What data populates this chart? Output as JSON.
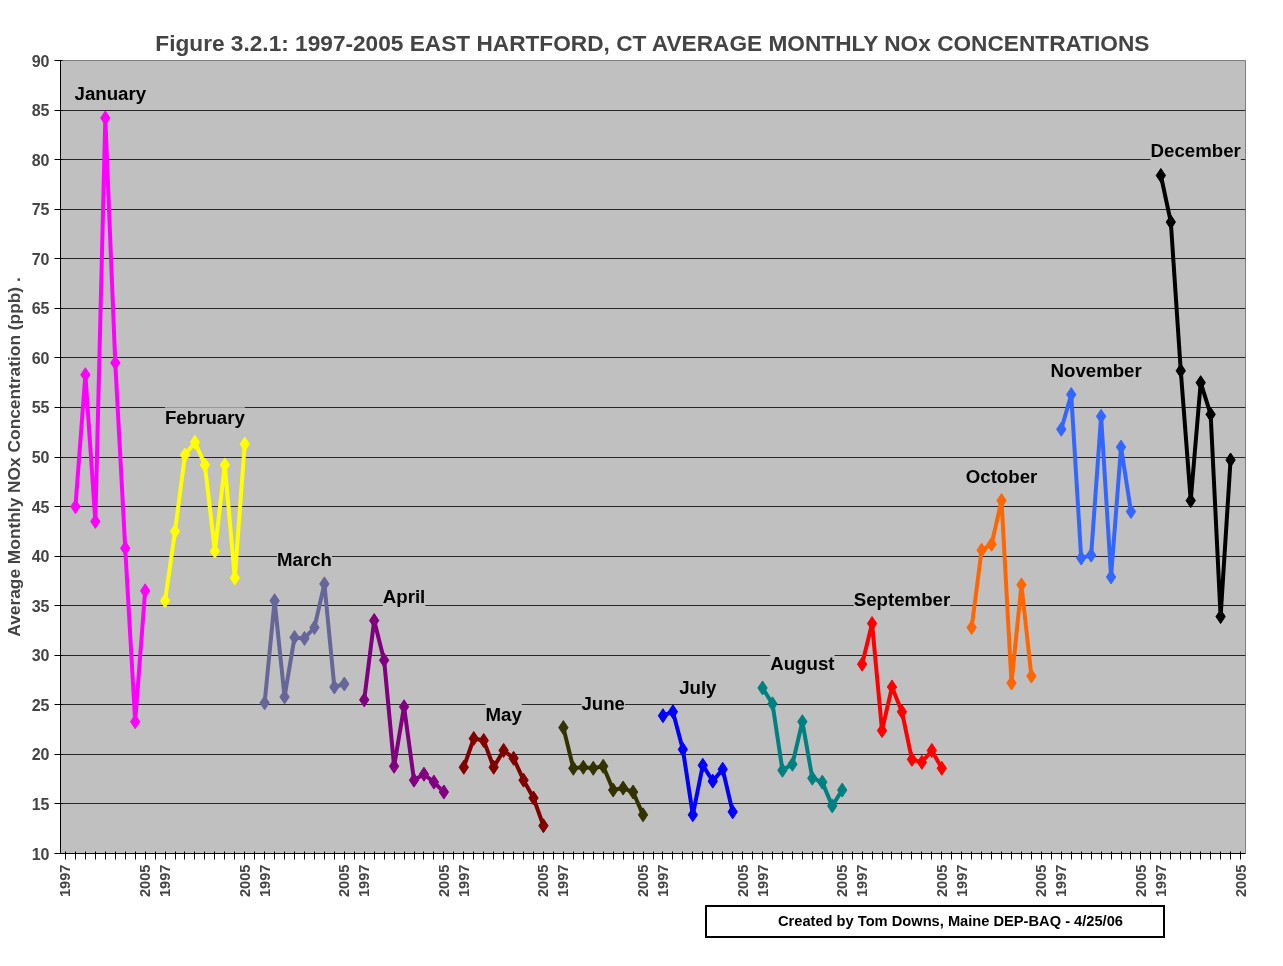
{
  "chart_data": {
    "type": "line",
    "title": "Figure 3.2.1: 1997-2005 EAST HARTFORD, CT AVERAGE MONTHLY NOx CONCENTRATIONS",
    "ylabel": "Average Monthly NOx Concentration (ppb) .",
    "annotations": [
      "Created by Tom Downs, Maine DEP-BAQ - 4/25/06"
    ],
    "categories": [
      "1997",
      null,
      null,
      null,
      null,
      null,
      null,
      null,
      "2005",
      null,
      "1997",
      null,
      null,
      null,
      null,
      null,
      null,
      null,
      "2005",
      null,
      "1997",
      null,
      null,
      null,
      null,
      null,
      null,
      null,
      "2005",
      null,
      "1997",
      null,
      null,
      null,
      null,
      null,
      null,
      null,
      "2005",
      null,
      "1997",
      null,
      null,
      null,
      null,
      null,
      null,
      null,
      "2005",
      null,
      "1997",
      null,
      null,
      null,
      null,
      null,
      null,
      null,
      "2005",
      null,
      "1997",
      null,
      null,
      null,
      null,
      null,
      null,
      null,
      "2005",
      null,
      "1997",
      null,
      null,
      null,
      null,
      null,
      null,
      null,
      "2005",
      null,
      "1997",
      null,
      null,
      null,
      null,
      null,
      null,
      null,
      "2005",
      null,
      "1997",
      null,
      null,
      null,
      null,
      null,
      null,
      null,
      "2005",
      null,
      "1997",
      null,
      null,
      null,
      null,
      null,
      null,
      null,
      "2005",
      null,
      "1997",
      null,
      null,
      null,
      null,
      null,
      null,
      null,
      "2005"
    ],
    "ylim": [
      10,
      90
    ],
    "yticks": [
      10,
      15,
      20,
      25,
      30,
      35,
      40,
      45,
      50,
      55,
      60,
      65,
      70,
      75,
      80,
      85,
      90
    ],
    "grid": "y",
    "marker": "diamond",
    "line_style": "solid",
    "series": [
      {
        "name": "January",
        "color": "#ff00ff",
        "values": [
          null,
          45,
          58.3,
          43.5,
          84.2,
          59.5,
          40.8,
          23.3,
          36.5,
          null,
          null,
          null,
          null,
          null,
          null,
          null,
          null,
          null,
          null,
          null,
          null,
          null,
          null,
          null,
          null,
          null,
          null,
          null,
          null,
          null,
          null,
          null,
          null,
          null,
          null,
          null,
          null,
          null,
          null,
          null,
          null,
          null,
          null,
          null,
          null,
          null,
          null,
          null,
          null,
          null,
          null,
          null,
          null,
          null,
          null,
          null,
          null,
          null,
          null,
          null,
          null,
          null,
          null,
          null,
          null,
          null,
          null,
          null,
          null,
          null,
          null,
          null,
          null,
          null,
          null,
          null,
          null,
          null,
          null,
          null,
          null,
          null,
          null,
          null,
          null,
          null,
          null,
          null,
          null,
          null,
          null,
          null,
          null,
          null,
          null,
          null,
          null,
          null,
          null,
          null,
          null,
          null,
          null,
          null,
          null,
          null,
          null,
          null,
          null,
          null,
          null,
          null,
          null,
          null,
          null,
          null,
          null,
          null,
          null
        ]
      },
      {
        "name": "February",
        "color": "#ffff00",
        "values": [
          null,
          null,
          null,
          null,
          null,
          null,
          null,
          null,
          null,
          null,
          35.5,
          42.5,
          50.2,
          51.5,
          49.2,
          40.5,
          49.2,
          37.8,
          51.3,
          null,
          null,
          null,
          null,
          null,
          null,
          null,
          null,
          null,
          null,
          null,
          null,
          null,
          null,
          null,
          null,
          null,
          null,
          null,
          null,
          null,
          null,
          null,
          null,
          null,
          null,
          null,
          null,
          null,
          null,
          null,
          null,
          null,
          null,
          null,
          null,
          null,
          null,
          null,
          null,
          null,
          null,
          null,
          null,
          null,
          null,
          null,
          null,
          null,
          null,
          null,
          null,
          null,
          null,
          null,
          null,
          null,
          null,
          null,
          null,
          null,
          null,
          null,
          null,
          null,
          null,
          null,
          null,
          null,
          null,
          null,
          null,
          null,
          null,
          null,
          null,
          null,
          null,
          null,
          null,
          null,
          null,
          null,
          null,
          null,
          null,
          null,
          null,
          null,
          null,
          null,
          null,
          null,
          null,
          null,
          null,
          null,
          null,
          null,
          null
        ]
      },
      {
        "name": "March",
        "color": "#666699",
        "values": [
          null,
          null,
          null,
          null,
          null,
          null,
          null,
          null,
          null,
          null,
          null,
          null,
          null,
          null,
          null,
          null,
          null,
          null,
          null,
          null,
          25.2,
          35.5,
          25.8,
          31.8,
          31.7,
          32.8,
          37.2,
          26.8,
          27.1,
          null,
          null,
          null,
          null,
          null,
          null,
          null,
          null,
          null,
          null,
          null,
          null,
          null,
          null,
          null,
          null,
          null,
          null,
          null,
          null,
          null,
          null,
          null,
          null,
          null,
          null,
          null,
          null,
          null,
          null,
          null,
          null,
          null,
          null,
          null,
          null,
          null,
          null,
          null,
          null,
          null,
          null,
          null,
          null,
          null,
          null,
          null,
          null,
          null,
          null,
          null,
          null,
          null,
          null,
          null,
          null,
          null,
          null,
          null,
          null,
          null,
          null,
          null,
          null,
          null,
          null,
          null,
          null,
          null,
          null,
          null,
          null,
          null,
          null,
          null,
          null,
          null,
          null,
          null,
          null,
          null,
          null,
          null,
          null,
          null,
          null,
          null,
          null,
          null,
          null
        ]
      },
      {
        "name": "April",
        "color": "#800080",
        "values": [
          null,
          null,
          null,
          null,
          null,
          null,
          null,
          null,
          null,
          null,
          null,
          null,
          null,
          null,
          null,
          null,
          null,
          null,
          null,
          null,
          null,
          null,
          null,
          null,
          null,
          null,
          null,
          null,
          null,
          null,
          25.5,
          33.5,
          29.5,
          18.8,
          24.8,
          17.4,
          18.0,
          17.2,
          16.2,
          null,
          null,
          null,
          null,
          null,
          null,
          null,
          null,
          null,
          null,
          null,
          null,
          null,
          null,
          null,
          null,
          null,
          null,
          null,
          null,
          null,
          null,
          null,
          null,
          null,
          null,
          null,
          null,
          null,
          null,
          null,
          null,
          null,
          null,
          null,
          null,
          null,
          null,
          null,
          null,
          null,
          null,
          null,
          null,
          null,
          null,
          null,
          null,
          null,
          null,
          null,
          null,
          null,
          null,
          null,
          null,
          null,
          null,
          null,
          null,
          null,
          null,
          null,
          null,
          null,
          null,
          null,
          null,
          null,
          null,
          null,
          null,
          null,
          null,
          null,
          null,
          null,
          null,
          null,
          null
        ]
      },
      {
        "name": "May",
        "color": "#800000",
        "values": [
          null,
          null,
          null,
          null,
          null,
          null,
          null,
          null,
          null,
          null,
          null,
          null,
          null,
          null,
          null,
          null,
          null,
          null,
          null,
          null,
          null,
          null,
          null,
          null,
          null,
          null,
          null,
          null,
          null,
          null,
          null,
          null,
          null,
          null,
          null,
          null,
          null,
          null,
          null,
          null,
          18.7,
          21.6,
          21.4,
          18.7,
          20.4,
          19.6,
          17.4,
          15.6,
          12.8,
          null,
          null,
          null,
          null,
          null,
          null,
          null,
          null,
          null,
          null,
          null,
          null,
          null,
          null,
          null,
          null,
          null,
          null,
          null,
          null,
          null,
          null,
          null,
          null,
          null,
          null,
          null,
          null,
          null,
          null,
          null,
          null,
          null,
          null,
          null,
          null,
          null,
          null,
          null,
          null,
          null,
          null,
          null,
          null,
          null,
          null,
          null,
          null,
          null,
          null,
          null,
          null,
          null,
          null,
          null,
          null,
          null,
          null,
          null,
          null,
          null,
          null,
          null,
          null,
          null,
          null,
          null,
          null,
          null,
          null
        ]
      },
      {
        "name": "June",
        "color": "#333300",
        "values": [
          null,
          null,
          null,
          null,
          null,
          null,
          null,
          null,
          null,
          null,
          null,
          null,
          null,
          null,
          null,
          null,
          null,
          null,
          null,
          null,
          null,
          null,
          null,
          null,
          null,
          null,
          null,
          null,
          null,
          null,
          null,
          null,
          null,
          null,
          null,
          null,
          null,
          null,
          null,
          null,
          null,
          null,
          null,
          null,
          null,
          null,
          null,
          null,
          null,
          null,
          22.7,
          18.6,
          18.7,
          18.6,
          18.8,
          16.4,
          16.6,
          16.2,
          13.9,
          null,
          null,
          null,
          null,
          null,
          null,
          null,
          null,
          null,
          null,
          null,
          null,
          null,
          null,
          null,
          null,
          null,
          null,
          null,
          null,
          null,
          null,
          null,
          null,
          null,
          null,
          null,
          null,
          null,
          null,
          null,
          null,
          null,
          null,
          null,
          null,
          null,
          null,
          null,
          null,
          null,
          null,
          null,
          null,
          null,
          null,
          null,
          null,
          null,
          null,
          null,
          null,
          null,
          null,
          null,
          null,
          null,
          null,
          null,
          null
        ]
      },
      {
        "name": "July",
        "color": "#0000ff",
        "values": [
          null,
          null,
          null,
          null,
          null,
          null,
          null,
          null,
          null,
          null,
          null,
          null,
          null,
          null,
          null,
          null,
          null,
          null,
          null,
          null,
          null,
          null,
          null,
          null,
          null,
          null,
          null,
          null,
          null,
          null,
          null,
          null,
          null,
          null,
          null,
          null,
          null,
          null,
          null,
          null,
          null,
          null,
          null,
          null,
          null,
          null,
          null,
          null,
          null,
          null,
          null,
          null,
          null,
          null,
          null,
          null,
          null,
          null,
          null,
          null,
          23.9,
          24.3,
          20.5,
          13.9,
          18.9,
          17.3,
          18.5,
          14.2,
          null,
          null,
          null,
          null,
          null,
          null,
          null,
          null,
          null,
          null,
          null,
          null,
          null,
          null,
          null,
          null,
          null,
          null,
          null,
          null,
          null,
          null,
          null,
          null,
          null,
          null,
          null,
          null,
          null,
          null,
          null,
          null,
          null,
          null,
          null,
          null,
          null,
          null,
          null,
          null,
          null,
          null,
          null,
          null,
          null,
          null,
          null,
          null,
          null,
          null,
          null
        ]
      },
      {
        "name": "August",
        "color": "#008080",
        "values": [
          null,
          null,
          null,
          null,
          null,
          null,
          null,
          null,
          null,
          null,
          null,
          null,
          null,
          null,
          null,
          null,
          null,
          null,
          null,
          null,
          null,
          null,
          null,
          null,
          null,
          null,
          null,
          null,
          null,
          null,
          null,
          null,
          null,
          null,
          null,
          null,
          null,
          null,
          null,
          null,
          null,
          null,
          null,
          null,
          null,
          null,
          null,
          null,
          null,
          null,
          null,
          null,
          null,
          null,
          null,
          null,
          null,
          null,
          null,
          null,
          null,
          null,
          null,
          null,
          null,
          null,
          null,
          null,
          null,
          null,
          26.7,
          25.1,
          18.4,
          19.0,
          23.3,
          17.6,
          17.2,
          14.8,
          16.4,
          null,
          null,
          null,
          null,
          null,
          null,
          null,
          null,
          null,
          null,
          null,
          null,
          null,
          null,
          null,
          null,
          null,
          null,
          null,
          null,
          null,
          null,
          null,
          null,
          null,
          null,
          null,
          null,
          null,
          null,
          null,
          null,
          null,
          null,
          null,
          null,
          null,
          null,
          null,
          null
        ]
      },
      {
        "name": "September",
        "color": "#ff0000",
        "values": [
          null,
          null,
          null,
          null,
          null,
          null,
          null,
          null,
          null,
          null,
          null,
          null,
          null,
          null,
          null,
          null,
          null,
          null,
          null,
          null,
          null,
          null,
          null,
          null,
          null,
          null,
          null,
          null,
          null,
          null,
          null,
          null,
          null,
          null,
          null,
          null,
          null,
          null,
          null,
          null,
          null,
          null,
          null,
          null,
          null,
          null,
          null,
          null,
          null,
          null,
          null,
          null,
          null,
          null,
          null,
          null,
          null,
          null,
          null,
          null,
          null,
          null,
          null,
          null,
          null,
          null,
          null,
          null,
          null,
          null,
          null,
          null,
          null,
          null,
          null,
          null,
          null,
          null,
          null,
          null,
          29.1,
          33.2,
          22.4,
          26.8,
          24.3,
          19.5,
          19.2,
          20.4,
          18.6,
          null,
          null,
          null,
          null,
          null,
          null,
          null,
          null,
          null,
          null,
          null,
          null,
          null,
          null,
          null,
          null,
          null,
          null,
          null,
          null,
          null,
          null,
          null,
          null,
          null,
          null,
          null,
          null,
          null,
          null
        ]
      },
      {
        "name": "October",
        "color": "#ff6600",
        "values": [
          null,
          null,
          null,
          null,
          null,
          null,
          null,
          null,
          null,
          null,
          null,
          null,
          null,
          null,
          null,
          null,
          null,
          null,
          null,
          null,
          null,
          null,
          null,
          null,
          null,
          null,
          null,
          null,
          null,
          null,
          null,
          null,
          null,
          null,
          null,
          null,
          null,
          null,
          null,
          null,
          null,
          null,
          null,
          null,
          null,
          null,
          null,
          null,
          null,
          null,
          null,
          null,
          null,
          null,
          null,
          null,
          null,
          null,
          null,
          null,
          null,
          null,
          null,
          null,
          null,
          null,
          null,
          null,
          null,
          null,
          null,
          null,
          null,
          null,
          null,
          null,
          null,
          null,
          null,
          null,
          null,
          null,
          null,
          null,
          null,
          null,
          null,
          null,
          null,
          null,
          null,
          32.8,
          40.6,
          41.2,
          45.6,
          27.2,
          37.1,
          27.9,
          null,
          null,
          null,
          null,
          null,
          null,
          null,
          null,
          null,
          null,
          null,
          null,
          null,
          null,
          null,
          null,
          null,
          null,
          null,
          null,
          null
        ]
      },
      {
        "name": "November",
        "color": "#3366ff",
        "values": [
          null,
          null,
          null,
          null,
          null,
          null,
          null,
          null,
          null,
          null,
          null,
          null,
          null,
          null,
          null,
          null,
          null,
          null,
          null,
          null,
          null,
          null,
          null,
          null,
          null,
          null,
          null,
          null,
          null,
          null,
          null,
          null,
          null,
          null,
          null,
          null,
          null,
          null,
          null,
          null,
          null,
          null,
          null,
          null,
          null,
          null,
          null,
          null,
          null,
          null,
          null,
          null,
          null,
          null,
          null,
          null,
          null,
          null,
          null,
          null,
          null,
          null,
          null,
          null,
          null,
          null,
          null,
          null,
          null,
          null,
          null,
          null,
          null,
          null,
          null,
          null,
          null,
          null,
          null,
          null,
          null,
          null,
          null,
          null,
          null,
          null,
          null,
          null,
          null,
          null,
          null,
          null,
          null,
          null,
          null,
          null,
          null,
          null,
          null,
          null,
          52.8,
          56.3,
          39.8,
          40.1,
          54.1,
          37.9,
          51.0,
          44.5,
          null,
          null,
          null,
          null,
          null,
          null,
          null,
          null,
          null,
          null,
          null
        ]
      },
      {
        "name": "December",
        "color": "#000000",
        "values": [
          null,
          null,
          null,
          null,
          null,
          null,
          null,
          null,
          null,
          null,
          null,
          null,
          null,
          null,
          null,
          null,
          null,
          null,
          null,
          null,
          null,
          null,
          null,
          null,
          null,
          null,
          null,
          null,
          null,
          null,
          null,
          null,
          null,
          null,
          null,
          null,
          null,
          null,
          null,
          null,
          null,
          null,
          null,
          null,
          null,
          null,
          null,
          null,
          null,
          null,
          null,
          null,
          null,
          null,
          null,
          null,
          null,
          null,
          null,
          null,
          null,
          null,
          null,
          null,
          null,
          null,
          null,
          null,
          null,
          null,
          null,
          null,
          null,
          null,
          null,
          null,
          null,
          null,
          null,
          null,
          null,
          null,
          null,
          null,
          null,
          null,
          null,
          null,
          null,
          null,
          null,
          null,
          null,
          null,
          null,
          null,
          null,
          null,
          null,
          null,
          null,
          null,
          null,
          null,
          null,
          null,
          null,
          null,
          null,
          null,
          78.4,
          73.7,
          58.7,
          45.6,
          57.5,
          54.3,
          33.9,
          49.7,
          null
        ]
      }
    ]
  }
}
